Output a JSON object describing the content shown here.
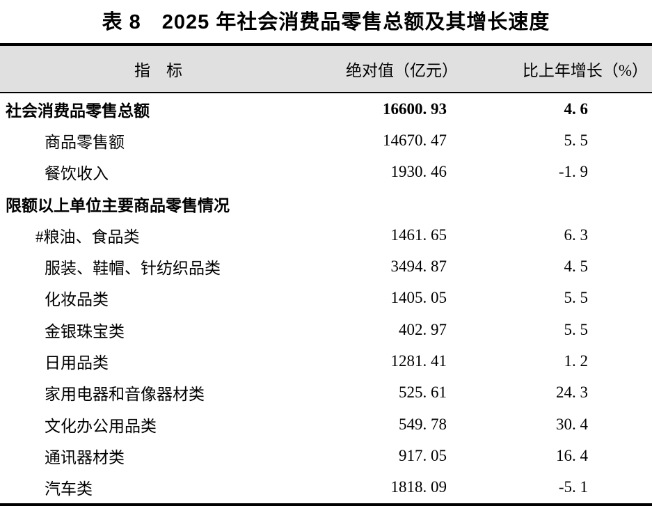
{
  "title": "表 8　2025 年社会消费品零售总额及其增长速度",
  "table": {
    "header_bg_color": "#e0e0e0",
    "border_color": "#000000",
    "columns": [
      {
        "label": "指　标"
      },
      {
        "label": "绝对值（亿元）"
      },
      {
        "label": "比上年增长（%）"
      }
    ],
    "rows": [
      {
        "indicator": "社会消费品零售总额",
        "value": "16600. 93",
        "growth": "4. 6",
        "bold": true,
        "indent": 0
      },
      {
        "indicator": "商品零售额",
        "value": "14670. 47",
        "growth": "5. 5",
        "bold": false,
        "indent": 1
      },
      {
        "indicator": "餐饮收入",
        "value": "1930. 46",
        "growth": "-1. 9",
        "bold": false,
        "indent": 1
      },
      {
        "indicator": "限额以上单位主要商品零售情况",
        "value": "",
        "growth": "",
        "bold": true,
        "indent": 0
      },
      {
        "indicator": "#粮油、食品类",
        "value": "1461. 65",
        "growth": "6. 3",
        "bold": false,
        "indent": 1
      },
      {
        "indicator": "服装、鞋帽、针纺织品类",
        "value": "3494. 87",
        "growth": "4. 5",
        "bold": false,
        "indent": 1
      },
      {
        "indicator": "化妆品类",
        "value": "1405. 05",
        "growth": "5. 5",
        "bold": false,
        "indent": 1
      },
      {
        "indicator": "金银珠宝类",
        "value": "402. 97",
        "growth": "5. 5",
        "bold": false,
        "indent": 1
      },
      {
        "indicator": "日用品类",
        "value": "1281. 41",
        "growth": "1. 2",
        "bold": false,
        "indent": 1
      },
      {
        "indicator": "家用电器和音像器材类",
        "value": "525. 61",
        "growth": "24. 3",
        "bold": false,
        "indent": 1
      },
      {
        "indicator": "文化办公用品类",
        "value": "549. 78",
        "growth": "30. 4",
        "bold": false,
        "indent": 1
      },
      {
        "indicator": "通讯器材类",
        "value": "917. 05",
        "growth": "16. 4",
        "bold": false,
        "indent": 1
      },
      {
        "indicator": "汽车类",
        "value": "1818. 09",
        "growth": "-5. 1",
        "bold": false,
        "indent": 1
      }
    ]
  }
}
